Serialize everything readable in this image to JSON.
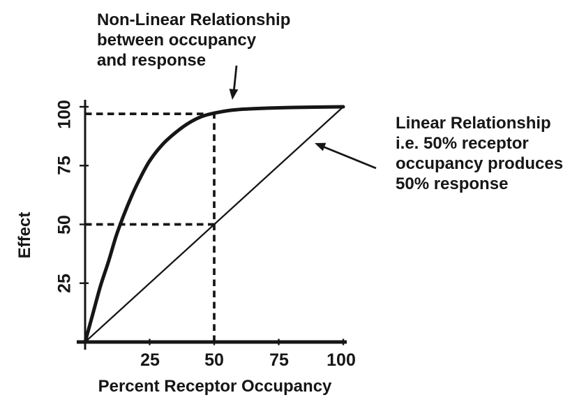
{
  "figure": {
    "background": "#ffffff",
    "ink": "#161616"
  },
  "annotations": {
    "nonlinear": {
      "lines": [
        "Non-Linear Relationship",
        "between occupancy",
        "and response"
      ]
    },
    "linear": {
      "lines": [
        "Linear Relationship",
        "i.e. 50% receptor",
        "occupancy produces",
        "50% response"
      ]
    }
  },
  "chart_data": {
    "type": "line",
    "xlabel": "Percent Receptor Occupancy",
    "ylabel": "Effect",
    "xlim": [
      0,
      100
    ],
    "ylim": [
      0,
      100
    ],
    "x_ticks": [
      25,
      50,
      75,
      100
    ],
    "y_ticks": [
      25,
      50,
      75,
      100
    ],
    "grid": false,
    "legend": "none",
    "series": [
      {
        "key": "non-linear-curve",
        "name": "Non-linear (hyperbolic) occupancy-response curve",
        "line": "thick",
        "points": [
          [
            0,
            0
          ],
          [
            3,
            12
          ],
          [
            6,
            24
          ],
          [
            9,
            34
          ],
          [
            12,
            45
          ],
          [
            15,
            54
          ],
          [
            18,
            62
          ],
          [
            21,
            69
          ],
          [
            25,
            77
          ],
          [
            30,
            84
          ],
          [
            35,
            89
          ],
          [
            40,
            93
          ],
          [
            45,
            95.8
          ],
          [
            50,
            97.3
          ],
          [
            57,
            98.6
          ],
          [
            65,
            99.2
          ],
          [
            80,
            99.7
          ],
          [
            100,
            100
          ]
        ]
      },
      {
        "key": "linear-line",
        "name": "Linear occupancy-response line",
        "line": "thin",
        "points": [
          [
            0,
            0
          ],
          [
            100,
            100
          ]
        ]
      }
    ],
    "reference_lines": [
      {
        "orientation": "horizontal",
        "value": 97,
        "from": 0,
        "to": 47,
        "style": "dashed"
      },
      {
        "orientation": "horizontal",
        "value": 50,
        "from": 0,
        "to": 50,
        "style": "dashed"
      },
      {
        "orientation": "vertical",
        "value": 50,
        "from": 0,
        "to": 98,
        "style": "dashed"
      }
    ]
  }
}
